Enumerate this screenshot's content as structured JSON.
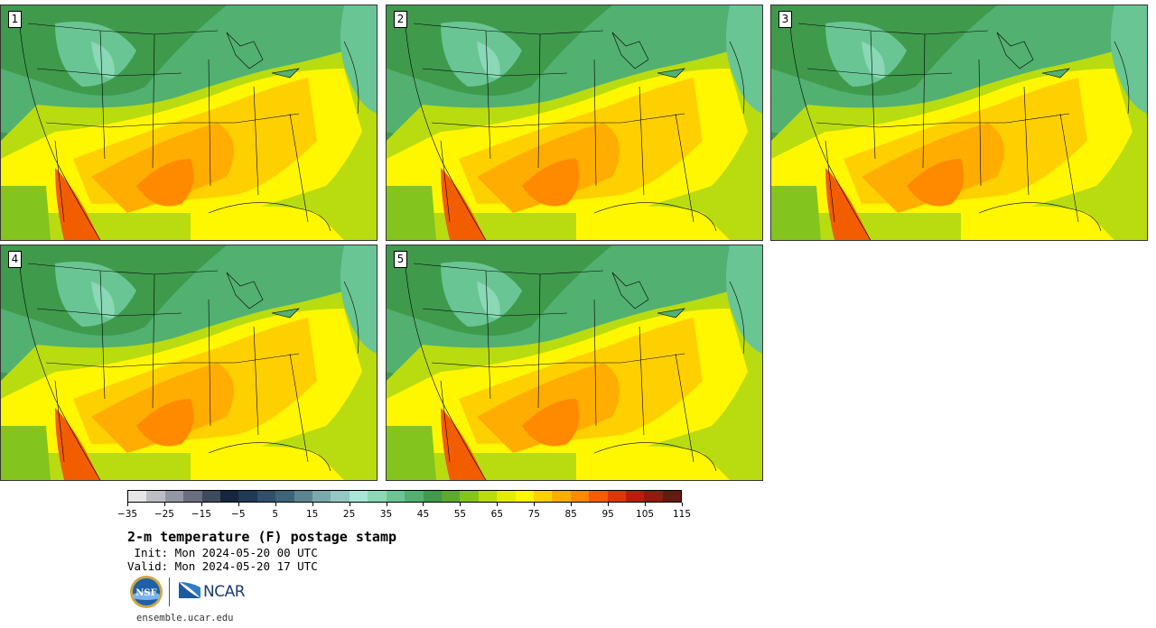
{
  "title": "2-m temperature (F) postage stamp",
  "init": " Init: Mon 2024-05-20 00 UTC",
  "valid": "Valid: Mon 2024-05-20 17 UTC",
  "website": "ensemble.ucar.edu",
  "logos": {
    "nsf": "NSF",
    "ncar": "NCAR"
  },
  "panels": [
    {
      "label": "1"
    },
    {
      "label": "2"
    },
    {
      "label": "3"
    },
    {
      "label": "4"
    },
    {
      "label": "5"
    }
  ],
  "colorbar": {
    "colors": [
      "#e6e6e6",
      "#bdbdc6",
      "#9297a3",
      "#6a6f80",
      "#3e4a5e",
      "#16263e",
      "#1f3a55",
      "#2f4f6a",
      "#3d6478",
      "#5a8590",
      "#7aa9ab",
      "#96c7c2",
      "#a9e6d7",
      "#8ad8b6",
      "#6ac594",
      "#52b071",
      "#3f9a4c",
      "#5aab2a",
      "#84c41e",
      "#b9dc10",
      "#e2ec07",
      "#fff700",
      "#ffd000",
      "#ffad00",
      "#ff8a00",
      "#f25d00",
      "#d93a00",
      "#b52108",
      "#8f1c0e",
      "#641a10"
    ],
    "tick_labels": [
      "-35",
      "-25",
      "-15",
      "-5",
      "5",
      "15",
      "25",
      "35",
      "45",
      "55",
      "65",
      "75",
      "85",
      "95",
      "105",
      "115"
    ]
  }
}
